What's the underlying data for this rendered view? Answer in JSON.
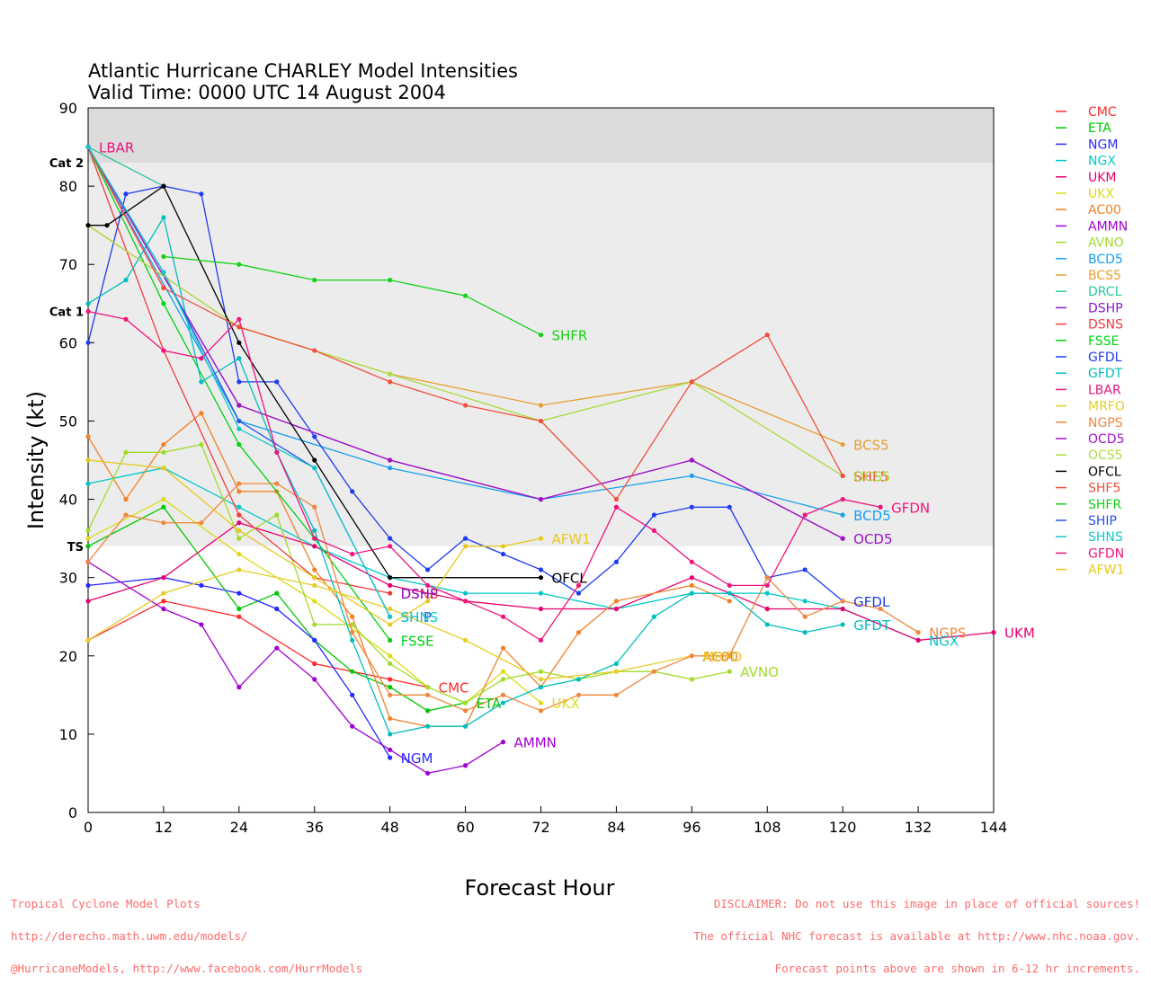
{
  "page": {
    "title_line1": "Atlantic Hurricane CHARLEY Model Intensities",
    "title_line2": "Valid Time: 0000 UTC 14 August 2004",
    "footer_left": [
      "Tropical Cyclone Model Plots",
      "http://derecho.math.uwm.edu/models/",
      "@HurricaneModels, http://www.facebook.com/HurrModels"
    ],
    "footer_right": [
      "DISCLAIMER: Do not use this image in place of official sources!",
      "The official NHC forecast is available at http://www.nhc.noaa.gov.",
      "Forecast points above are shown in 6-12 hr increments."
    ]
  },
  "chart_data": {
    "type": "line",
    "title": "Atlantic Hurricane CHARLEY Model Intensities",
    "subtitle": "Valid Time: 0000 UTC 14 August 2004",
    "xlabel": "Forecast Hour",
    "ylabel": "Intensity (kt)",
    "xlim": [
      0,
      144
    ],
    "ylim": [
      0,
      90
    ],
    "xticks": [
      0,
      12,
      24,
      36,
      48,
      60,
      72,
      84,
      96,
      108,
      120,
      132,
      144
    ],
    "yticks": [
      0,
      10,
      20,
      30,
      40,
      50,
      60,
      70,
      80,
      90
    ],
    "legend_position": "right",
    "category_bands": [
      {
        "label": "TS",
        "from": 34,
        "to": 64,
        "color": "#ececec"
      },
      {
        "label": "Cat 1",
        "from": 64,
        "to": 83,
        "color": "#ececec"
      },
      {
        "label": "Cat 2",
        "from": 83,
        "to": 90,
        "color": "#dcdcdc"
      }
    ],
    "series": [
      {
        "name": "CMC",
        "color": "#ff2a2a",
        "x": [
          0,
          12,
          24,
          36,
          48,
          54
        ],
        "y": [
          22,
          27,
          25,
          19,
          17,
          16
        ]
      },
      {
        "name": "ETA",
        "color": "#00c800",
        "x": [
          0,
          12,
          24,
          30,
          36,
          42,
          48,
          54,
          60
        ],
        "y": [
          34,
          39,
          26,
          28,
          22,
          18,
          16,
          13,
          14
        ]
      },
      {
        "name": "NGM",
        "color": "#2828ff",
        "x": [
          0,
          12,
          18,
          24,
          30,
          36,
          42,
          48
        ],
        "y": [
          29,
          30,
          29,
          28,
          26,
          22,
          15,
          7
        ]
      },
      {
        "name": "NGX",
        "color": "#00c8c8",
        "x": [
          0,
          12,
          24,
          36,
          48,
          60,
          72,
          84,
          96,
          108,
          114,
          120,
          132
        ],
        "y": [
          42,
          44,
          39,
          34,
          30,
          28,
          28,
          26,
          28,
          28,
          27,
          26,
          22
        ]
      },
      {
        "name": "UKM",
        "color": "#e6006e",
        "x": [
          0,
          12,
          24,
          36,
          48,
          60,
          72,
          84,
          96,
          108,
          120,
          132,
          144
        ],
        "y": [
          27,
          30,
          37,
          34,
          29,
          27,
          26,
          26,
          30,
          26,
          26,
          22,
          23
        ]
      },
      {
        "name": "UKX",
        "color": "#dcdc14",
        "x": [
          0,
          12,
          24,
          36,
          48,
          54,
          60,
          66,
          72
        ],
        "y": [
          35,
          40,
          33,
          27,
          20,
          16,
          14,
          18,
          14
        ]
      },
      {
        "name": "AC00",
        "color": "#f08228",
        "x": [
          0,
          6,
          12,
          18,
          24,
          30,
          36,
          42,
          48,
          54,
          60,
          66,
          72,
          78,
          84,
          96,
          102
        ],
        "y": [
          48,
          40,
          47,
          51,
          41,
          41,
          31,
          25,
          12,
          11,
          11,
          21,
          16,
          23,
          27,
          29,
          27
        ]
      },
      {
        "name": "AMMN",
        "color": "#a000d2",
        "x": [
          0,
          12,
          18,
          24,
          30,
          36,
          42,
          48,
          54,
          60,
          66
        ],
        "y": [
          32,
          26,
          24,
          16,
          21,
          17,
          11,
          8,
          5,
          6,
          9
        ]
      },
      {
        "name": "AVNO",
        "color": "#a0dc28",
        "x": [
          0,
          6,
          12,
          18,
          24,
          30,
          36,
          42,
          48,
          54,
          60,
          66,
          72,
          78,
          84,
          90,
          96,
          102
        ],
        "y": [
          36,
          46,
          46,
          47,
          35,
          38,
          24,
          24,
          19,
          16,
          14,
          17,
          18,
          17,
          18,
          18,
          17,
          18
        ]
      },
      {
        "name": "BCD5",
        "color": "#14a0f0",
        "x": [
          0,
          24,
          48,
          72,
          96,
          120
        ],
        "y": [
          85,
          50,
          44,
          40,
          43,
          38
        ]
      },
      {
        "name": "BCS5",
        "color": "#e6a032",
        "x": [
          0,
          24,
          48,
          72,
          96,
          120
        ],
        "y": [
          75,
          62,
          56,
          52,
          55,
          47
        ]
      },
      {
        "name": "DRCL",
        "color": "#28c8a0",
        "x": [
          0,
          12
        ],
        "y": [
          85,
          80
        ]
      },
      {
        "name": "DSHP",
        "color": "#8c14d2",
        "x": [
          0,
          24,
          48,
          72,
          96,
          120
        ],
        "y": [
          85,
          52,
          45,
          40,
          45,
          35
        ]
      },
      {
        "name": "DSNS",
        "color": "#f03c3c",
        "x": [
          0,
          12,
          24,
          36,
          48
        ],
        "y": [
          85,
          59,
          38,
          30,
          28
        ]
      },
      {
        "name": "FSSE",
        "color": "#00d214",
        "x": [
          0,
          12,
          24,
          36,
          48
        ],
        "y": [
          85,
          65,
          47,
          35,
          22
        ]
      },
      {
        "name": "GFDL",
        "color": "#1e3cf0",
        "x": [
          0,
          6,
          12,
          18,
          24,
          30,
          36,
          42,
          48,
          54,
          60,
          66,
          72,
          78,
          84,
          90,
          96,
          102,
          108,
          114,
          120
        ],
        "y": [
          60,
          79,
          80,
          79,
          55,
          55,
          48,
          41,
          35,
          31,
          35,
          33,
          31,
          28,
          32,
          38,
          39,
          39,
          30,
          31,
          27
        ]
      },
      {
        "name": "GFDT",
        "color": "#00bebe",
        "x": [
          0,
          6,
          12,
          18,
          24,
          30,
          36,
          42,
          48,
          54,
          60,
          66,
          72,
          78,
          84,
          90,
          96,
          102,
          108,
          114,
          120
        ],
        "y": [
          65,
          68,
          76,
          55,
          58,
          46,
          36,
          22,
          10,
          11,
          11,
          14,
          16,
          17,
          19,
          25,
          28,
          28,
          24,
          23,
          24
        ]
      },
      {
        "name": "LBAR",
        "color": "#e6147d",
        "x": [
          0,
          12
        ],
        "y": [
          85,
          67
        ]
      },
      {
        "name": "MRFO",
        "color": "#e6cd28",
        "x": [
          0,
          12,
          24,
          36,
          48,
          60,
          72,
          84,
          96
        ],
        "y": [
          22,
          28,
          31,
          29,
          26,
          22,
          17,
          18,
          20
        ]
      },
      {
        "name": "NGPS",
        "color": "#f0873c",
        "x": [
          0,
          6,
          12,
          18,
          24,
          30,
          36,
          42,
          48,
          54,
          60,
          66,
          72,
          78,
          84,
          90,
          96,
          102,
          108,
          114,
          120,
          126,
          132
        ],
        "y": [
          32,
          38,
          37,
          37,
          42,
          42,
          39,
          23,
          15,
          15,
          13,
          15,
          13,
          15,
          15,
          18,
          20,
          20,
          30,
          25,
          27,
          26,
          23
        ]
      },
      {
        "name": "OCD5",
        "color": "#a014c8",
        "x": [
          0,
          24,
          48,
          72,
          96,
          120
        ],
        "y": [
          85,
          52,
          45,
          40,
          45,
          35
        ]
      },
      {
        "name": "OCS5",
        "color": "#aadc3c",
        "x": [
          0,
          24,
          48,
          72,
          96,
          120
        ],
        "y": [
          75,
          62,
          56,
          50,
          55,
          43
        ]
      },
      {
        "name": "OFCL",
        "color": "#000000",
        "x": [
          0,
          3,
          12,
          24,
          36,
          48,
          72
        ],
        "y": [
          75,
          75,
          80,
          60,
          45,
          30,
          30
        ]
      },
      {
        "name": "SHF5",
        "color": "#f0503c",
        "x": [
          0,
          12,
          24,
          36,
          48,
          60,
          72,
          84,
          96,
          108,
          120
        ],
        "y": [
          85,
          67,
          62,
          59,
          55,
          52,
          50,
          40,
          55,
          61,
          43
        ]
      },
      {
        "name": "SHFR",
        "color": "#14d214",
        "x": [
          12,
          24,
          36,
          48,
          60,
          72
        ],
        "y": [
          71,
          70,
          68,
          68,
          66,
          61
        ]
      },
      {
        "name": "SHIP",
        "color": "#2850f0",
        "x": [
          0,
          12,
          24,
          36,
          48
        ],
        "y": [
          85,
          69,
          50,
          44,
          25
        ]
      },
      {
        "name": "SHNS",
        "color": "#14c8c8",
        "x": [
          0,
          12,
          24,
          36,
          48
        ],
        "y": [
          85,
          69,
          49,
          44,
          25
        ]
      },
      {
        "name": "GFDN",
        "color": "#f0147d",
        "x": [
          0,
          6,
          12,
          18,
          24,
          30,
          36,
          42,
          48,
          54,
          60,
          66,
          72,
          78,
          84,
          90,
          96,
          102,
          108,
          114,
          120,
          126
        ],
        "y": [
          64,
          63,
          59,
          58,
          63,
          46,
          35,
          33,
          34,
          29,
          27,
          25,
          22,
          29,
          39,
          36,
          32,
          29,
          29,
          38,
          40,
          39
        ]
      },
      {
        "name": "AFW1",
        "color": "#e6c81e",
        "x": [
          0,
          12,
          24,
          36,
          48,
          54,
          60,
          66,
          72
        ],
        "y": [
          45,
          44,
          36,
          30,
          24,
          27,
          34,
          34,
          35
        ]
      }
    ],
    "end_labels": [
      {
        "text": "LBAR",
        "series": "LBAR",
        "x": 0,
        "y": 85
      },
      {
        "text": "SHFR",
        "series": "SHFR",
        "x": 72,
        "y": 61
      },
      {
        "text": "BCS5",
        "series": "BCS5",
        "x": 120,
        "y": 47
      },
      {
        "text": "SHF5",
        "series": "SHF5",
        "x": 120,
        "y": 43
      },
      {
        "text": "OCS5",
        "series": "OCS5",
        "x": 120,
        "y": 43
      },
      {
        "text": "GFDN",
        "series": "GFDN",
        "x": 126,
        "y": 39
      },
      {
        "text": "BCD5",
        "series": "BCD5",
        "x": 120,
        "y": 38
      },
      {
        "text": "OCD5",
        "series": "OCD5",
        "x": 120,
        "y": 35
      },
      {
        "text": "AFW1",
        "series": "AFW1",
        "x": 72,
        "y": 35
      },
      {
        "text": "OFCL",
        "series": "OFCL",
        "x": 72,
        "y": 30
      },
      {
        "text": "DSNS",
        "series": "DSNS",
        "x": 48,
        "y": 28
      },
      {
        "text": "DSHP",
        "series": "DSHP",
        "x": 48,
        "y": 28
      },
      {
        "text": "GFDL",
        "series": "GFDL",
        "x": 120,
        "y": 27
      },
      {
        "text": "SHIP",
        "series": "SHIP",
        "x": 48,
        "y": 25
      },
      {
        "text": "SHNS",
        "series": "SHNS",
        "x": 48,
        "y": 25
      },
      {
        "text": "GFDT",
        "series": "GFDT",
        "x": 120,
        "y": 24
      },
      {
        "text": "NGPS",
        "series": "NGPS",
        "x": 132,
        "y": 23
      },
      {
        "text": "UKM",
        "series": "UKM",
        "x": 144,
        "y": 23
      },
      {
        "text": "NGX",
        "series": "NGX",
        "x": 132,
        "y": 22
      },
      {
        "text": "FSSE",
        "series": "FSSE",
        "x": 48,
        "y": 22
      },
      {
        "text": "AC00",
        "series": "AC00",
        "x": 96,
        "y": 20
      },
      {
        "text": "MRFO",
        "series": "MRFO",
        "x": 96,
        "y": 20
      },
      {
        "text": "AVNO",
        "series": "AVNO",
        "x": 102,
        "y": 18
      },
      {
        "text": "CMC",
        "series": "CMC",
        "x": 54,
        "y": 16
      },
      {
        "text": "ETA",
        "series": "ETA",
        "x": 60,
        "y": 14
      },
      {
        "text": "UKX",
        "series": "UKX",
        "x": 72,
        "y": 14
      },
      {
        "text": "AMMN",
        "series": "AMMN",
        "x": 66,
        "y": 9
      },
      {
        "text": "NGM",
        "series": "NGM",
        "x": 48,
        "y": 7
      }
    ]
  }
}
